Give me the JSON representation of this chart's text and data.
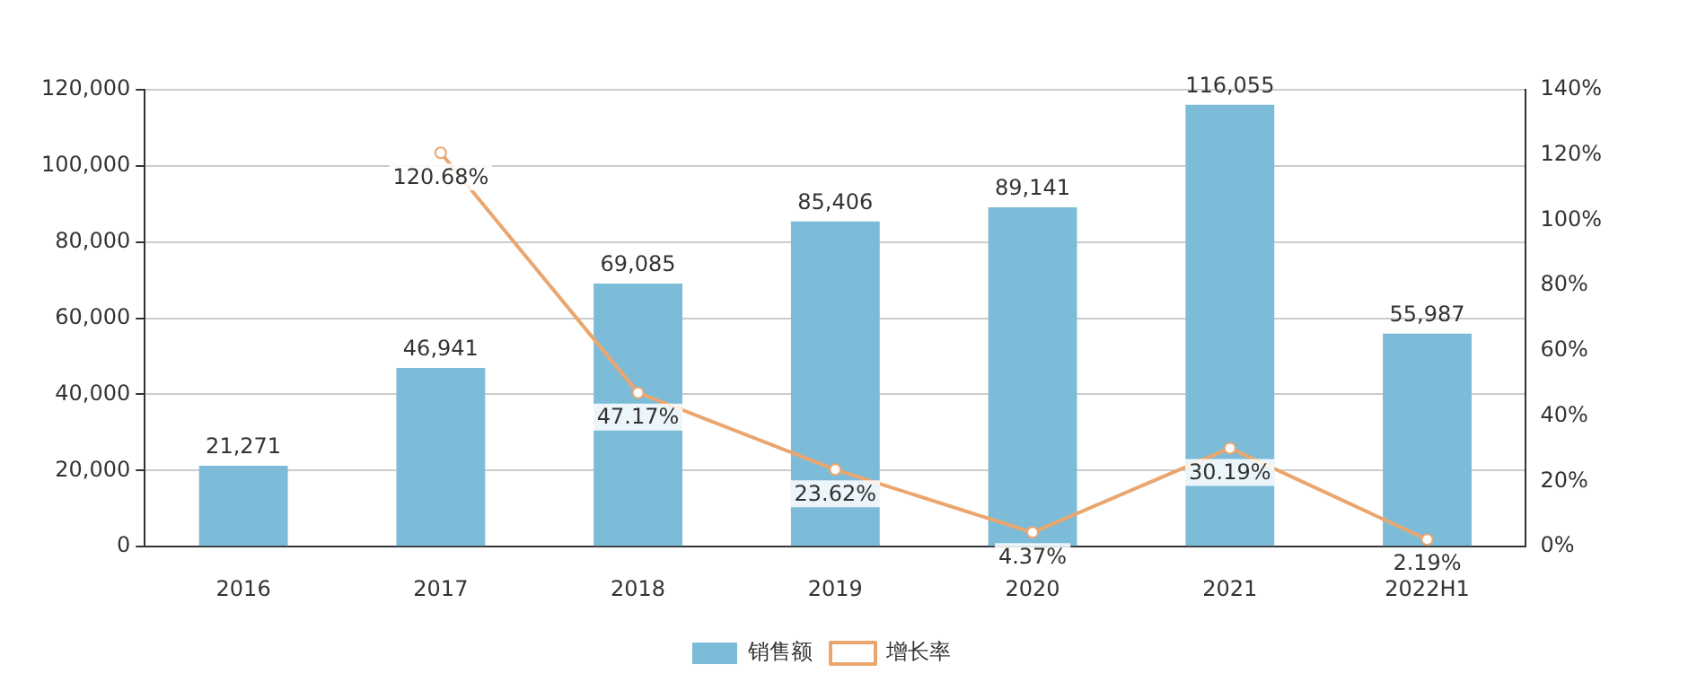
{
  "chart_data": {
    "type": "bar",
    "categories": [
      "2016",
      "2017",
      "2018",
      "2019",
      "2020",
      "2021",
      "2022H1"
    ],
    "series": [
      {
        "name": "销售额",
        "color": "#7dbcd9",
        "values": [
          21271,
          46941,
          69085,
          85406,
          89141,
          116055,
          55987
        ],
        "value_labels": [
          "21,271",
          "46,941",
          "69,085",
          "85,406",
          "89,141",
          "116,055",
          "55,987"
        ]
      },
      {
        "name": "增长率",
        "type": "line",
        "axis": "y2",
        "color": "#eaa66e",
        "values": [
          null,
          120.68,
          47.17,
          23.62,
          4.37,
          30.19,
          2.19
        ],
        "value_labels": [
          null,
          "120.68%",
          "47.17%",
          "23.62%",
          "4.37%",
          "30.19%",
          "2.19%"
        ]
      }
    ],
    "ylim": [
      0,
      120000
    ],
    "yticks": [
      0,
      {
        "value": 20000,
        "label": "20,000"
      },
      {
        "value": 40000,
        "label": "40,000"
      },
      {
        "value": 60000,
        "label": "60,000"
      },
      {
        "value": 80000,
        "label": "80,000"
      },
      {
        "value": 100000,
        "label": "100,000"
      },
      {
        "value": 120000,
        "label": "120,000"
      }
    ],
    "y2lim": [
      0,
      140
    ],
    "y2ticks": [
      {
        "value": 0,
        "label": "0%"
      },
      {
        "value": 20,
        "label": "20%"
      },
      {
        "value": 40,
        "label": "40%"
      },
      {
        "value": 60,
        "label": "60%"
      },
      {
        "value": 80,
        "label": "80%"
      },
      {
        "value": 100,
        "label": "100%"
      },
      {
        "value": 120,
        "label": "120%"
      },
      {
        "value": 140,
        "label": "140%"
      }
    ],
    "grid": "y",
    "legend": "bottom",
    "marker": "circle",
    "line_style": "solid"
  }
}
